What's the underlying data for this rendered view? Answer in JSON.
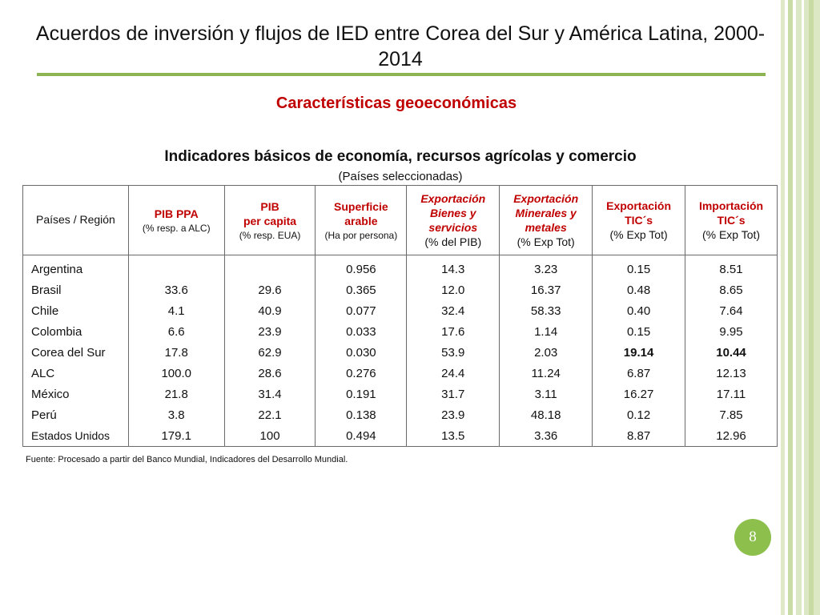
{
  "slide": {
    "title": "Acuerdos de inversión y flujos de IED entre Corea del Sur y América Latina, 2000-2014",
    "subtitle": "Características geoeconómicas",
    "table_title": "Indicadores básicos de economía, recursos agrícolas y comercio",
    "table_subtitle": "(Países seleccionadas)",
    "source": "Fuente: Procesado a partir del Banco Mundial, Indicadores del Desarrollo Mundial.",
    "page_number": "8"
  },
  "table": {
    "headers": [
      {
        "main": "Países /  Región",
        "sub": ""
      },
      {
        "main": "PIB PPA",
        "sub": "(% resp. a ALC)"
      },
      {
        "main": "PIB\nper capita",
        "sub": "(% resp. EUA)"
      },
      {
        "main": "Superficie\narable",
        "sub": "(Ha por persona)"
      },
      {
        "main": "Exportación\nBienes y\nservicios",
        "sub": "(% del PIB)"
      },
      {
        "main": "Exportación\nMinerales y\nmetales",
        "sub": "(% Exp Tot)"
      },
      {
        "main": "Exportación\nTIC´s",
        "sub": "(% Exp Tot)"
      },
      {
        "main": "Importación\nTIC´s",
        "sub": "(% Exp Tot)"
      }
    ],
    "rows": [
      {
        "country": "Argentina",
        "pib_ppa": "",
        "pib_pc": "",
        "sup": "0.956",
        "exp_bs": "14.3",
        "exp_mm": "3.23",
        "exp_tic": "0.15",
        "imp_tic": "8.51"
      },
      {
        "country": "Brasil",
        "pib_ppa": "33.6",
        "pib_pc": "29.6",
        "sup": "0.365",
        "exp_bs": "12.0",
        "exp_mm": "16.37",
        "exp_tic": "0.48",
        "imp_tic": "8.65"
      },
      {
        "country": "Chile",
        "pib_ppa": "4.1",
        "pib_pc": "40.9",
        "sup": "0.077",
        "exp_bs": "32.4",
        "exp_mm": "58.33",
        "exp_tic": "0.40",
        "imp_tic": "7.64"
      },
      {
        "country": "Colombia",
        "pib_ppa": "6.6",
        "pib_pc": "23.9",
        "sup": "0.033",
        "exp_bs": "17.6",
        "exp_mm": "1.14",
        "exp_tic": "0.15",
        "imp_tic": "9.95"
      },
      {
        "country": "Corea del Sur",
        "pib_ppa": "17.8",
        "pib_pc": "62.9",
        "sup": "0.030",
        "exp_bs": "53.9",
        "exp_mm": "2.03",
        "exp_tic": "19.14",
        "imp_tic": "10.44"
      },
      {
        "country": "ALC",
        "pib_ppa": "100.0",
        "pib_pc": "28.6",
        "sup": "0.276",
        "exp_bs": "24.4",
        "exp_mm": "11.24",
        "exp_tic": "6.87",
        "imp_tic": "12.13"
      },
      {
        "country": "México",
        "pib_ppa": "21.8",
        "pib_pc": "31.4",
        "sup": "0.191",
        "exp_bs": "31.7",
        "exp_mm": "3.11",
        "exp_tic": "16.27",
        "imp_tic": "17.11"
      },
      {
        "country": "Perú",
        "pib_ppa": "3.8",
        "pib_pc": "22.1",
        "sup": "0.138",
        "exp_bs": "23.9",
        "exp_mm": "48.18",
        "exp_tic": "0.12",
        "imp_tic": "7.85"
      },
      {
        "country": "Estados Unidos",
        "pib_ppa": "179.1",
        "pib_pc": "100",
        "sup": "0.494",
        "exp_bs": "13.5",
        "exp_mm": "3.36",
        "exp_tic": "8.87",
        "imp_tic": "12.96"
      }
    ]
  },
  "colors": {
    "accent_red": "#c00000",
    "highlight_orange": "#f0a500",
    "rule_green": "#8cb453",
    "badge_green": "#8cbf4b"
  }
}
